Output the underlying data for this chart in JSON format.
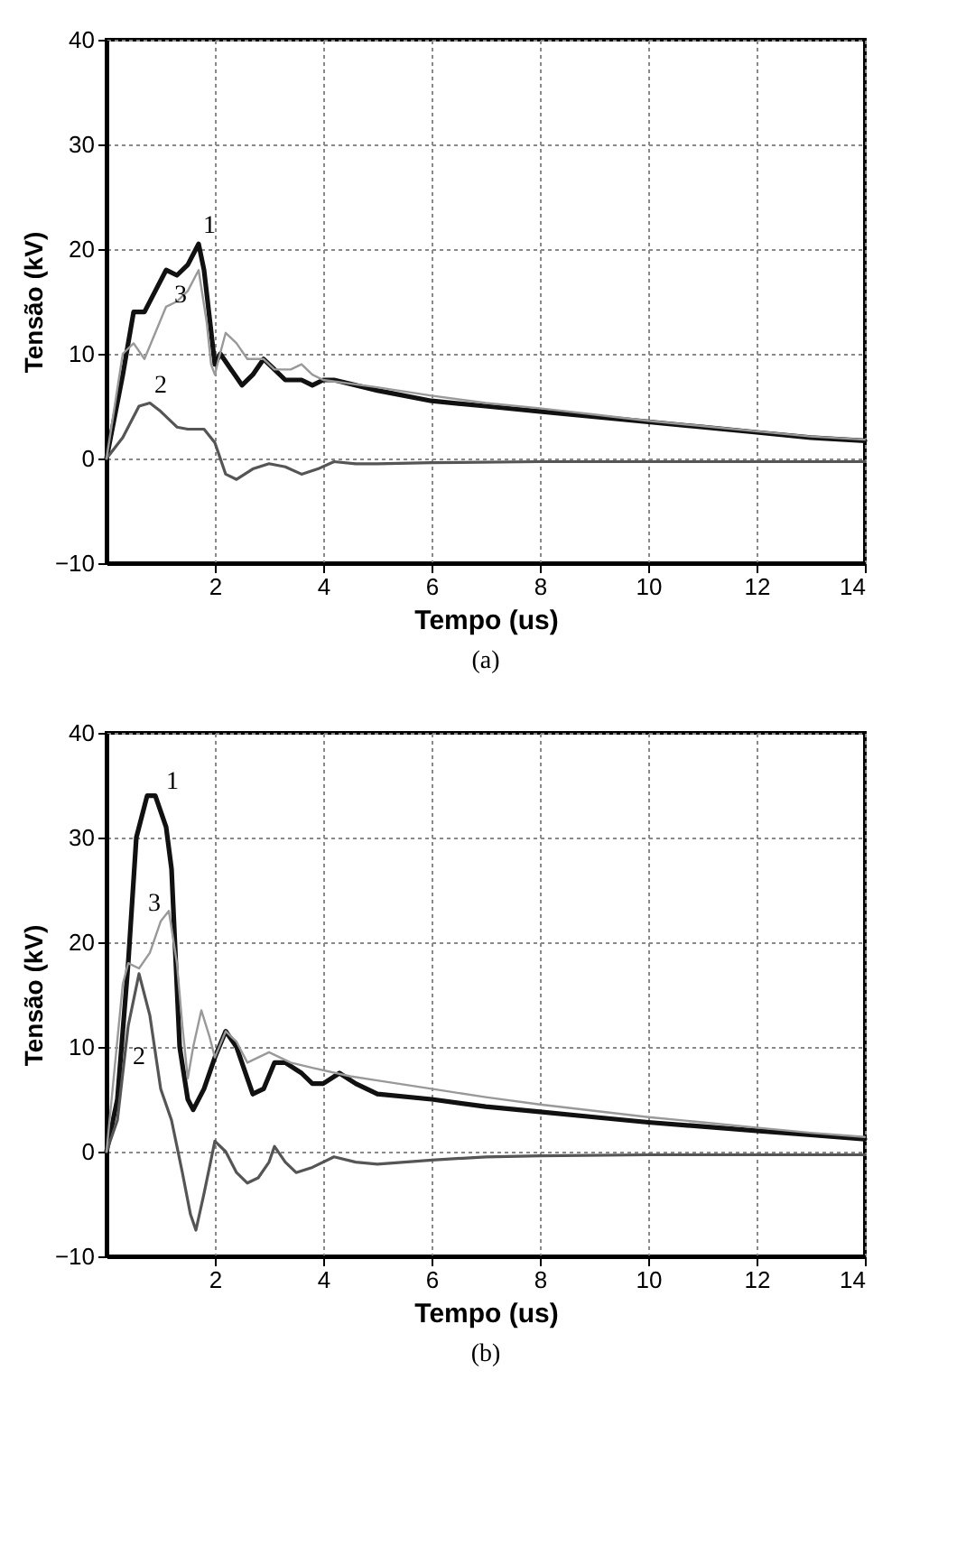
{
  "chart_data": [
    {
      "type": "line",
      "xlabel": "Tempo (us)",
      "ylabel": "Tensão (kV)",
      "xlim": [
        0,
        14
      ],
      "xticks": [
        2,
        4,
        6,
        8,
        10,
        12,
        14
      ],
      "ylim": [
        -10,
        40
      ],
      "yticks": [
        -10,
        0,
        10,
        20,
        30,
        40
      ],
      "grid": true,
      "annotations": [
        "(a)"
      ],
      "series": [
        {
          "name": "1",
          "color": "#111111",
          "x": [
            0,
            0.3,
            0.5,
            0.7,
            0.9,
            1.1,
            1.3,
            1.5,
            1.7,
            1.8,
            2.0,
            2.1,
            2.3,
            2.5,
            2.7,
            2.9,
            3.1,
            3.3,
            3.6,
            3.8,
            4,
            4.2,
            5,
            6,
            7,
            8,
            9,
            10,
            11,
            12,
            13,
            14
          ],
          "values": [
            0,
            8,
            14,
            14,
            16,
            18,
            17.5,
            18.5,
            20.5,
            18,
            9,
            10,
            8.5,
            7,
            8,
            9.5,
            8.5,
            7.5,
            7.5,
            7,
            7.5,
            7.5,
            6.5,
            5.5,
            5,
            4.5,
            4,
            3.5,
            3,
            2.5,
            2,
            1.7
          ]
        },
        {
          "name": "2",
          "color": "#555555",
          "x": [
            0,
            0.3,
            0.6,
            0.8,
            1.0,
            1.3,
            1.5,
            1.8,
            2.0,
            2.2,
            2.4,
            2.7,
            3.0,
            3.3,
            3.6,
            3.9,
            4.2,
            4.6,
            5,
            6,
            8,
            10,
            14
          ],
          "values": [
            0,
            2,
            5,
            5.3,
            4.5,
            3,
            2.8,
            2.8,
            1.5,
            -1.5,
            -2,
            -1,
            -0.5,
            -0.8,
            -1.5,
            -1,
            -0.3,
            -0.5,
            -0.5,
            -0.4,
            -0.3,
            -0.3,
            -0.3
          ]
        },
        {
          "name": "3",
          "color": "#999999",
          "x": [
            0,
            0.3,
            0.5,
            0.7,
            0.9,
            1.1,
            1.3,
            1.5,
            1.7,
            1.85,
            1.93,
            2.0,
            2.07,
            2.2,
            2.4,
            2.6,
            2.9,
            3.1,
            3.4,
            3.6,
            3.8,
            4,
            5,
            6,
            7,
            8,
            9,
            10,
            11,
            12,
            13,
            14
          ],
          "values": [
            0,
            10,
            11,
            9.5,
            12,
            14.5,
            15,
            16,
            18,
            13,
            9,
            8,
            9.5,
            12,
            11,
            9.5,
            9.5,
            8.5,
            8.5,
            9,
            8,
            7.5,
            6.8,
            6,
            5.3,
            4.8,
            4.2,
            3.6,
            3.1,
            2.6,
            2.1,
            1.8
          ]
        }
      ]
    },
    {
      "type": "line",
      "xlabel": "Tempo (us)",
      "ylabel": "Tensão (kV)",
      "xlim": [
        0,
        14
      ],
      "xticks": [
        2,
        4,
        6,
        8,
        10,
        12,
        14
      ],
      "ylim": [
        -10,
        40
      ],
      "yticks": [
        -10,
        0,
        10,
        20,
        30,
        40
      ],
      "grid": true,
      "annotations": [
        "(b)"
      ],
      "series": [
        {
          "name": "1",
          "color": "#111111",
          "x": [
            0,
            0.2,
            0.4,
            0.55,
            0.75,
            0.9,
            1.1,
            1.2,
            1.35,
            1.5,
            1.6,
            1.8,
            2.0,
            2.2,
            2.4,
            2.6,
            2.7,
            2.9,
            3.1,
            3.3,
            3.6,
            3.8,
            4.0,
            4.3,
            4.6,
            5,
            6,
            7,
            8,
            9,
            10,
            11,
            12,
            13,
            14
          ],
          "values": [
            0,
            5,
            18,
            30,
            34,
            34,
            31,
            27,
            10,
            5,
            4,
            6,
            9,
            11.5,
            10,
            7,
            5.5,
            6,
            8.5,
            8.5,
            7.5,
            6.5,
            6.5,
            7.5,
            6.5,
            5.5,
            5,
            4.3,
            3.8,
            3.3,
            2.8,
            2.4,
            2,
            1.6,
            1.2
          ]
        },
        {
          "name": "2",
          "color": "#555555",
          "x": [
            0,
            0.2,
            0.4,
            0.6,
            0.8,
            1.0,
            1.2,
            1.4,
            1.55,
            1.65,
            1.8,
            2.0,
            2.2,
            2.4,
            2.6,
            2.8,
            3.0,
            3.1,
            3.3,
            3.5,
            3.8,
            4.2,
            4.6,
            5,
            6,
            7,
            8,
            10,
            14
          ],
          "values": [
            0,
            3,
            12,
            17,
            13,
            6,
            3,
            -2,
            -6,
            -7.5,
            -4,
            1,
            0,
            -2,
            -3,
            -2.5,
            -1,
            0.5,
            -1,
            -2,
            -1.5,
            -0.5,
            -1,
            -1.2,
            -0.8,
            -0.5,
            -0.4,
            -0.3,
            -0.3
          ]
        },
        {
          "name": "3",
          "color": "#999999",
          "x": [
            0,
            0.3,
            0.4,
            0.6,
            0.8,
            1.0,
            1.15,
            1.3,
            1.4,
            1.5,
            1.6,
            1.75,
            1.9,
            2.0,
            2.2,
            2.4,
            2.6,
            2.8,
            3.0,
            3.4,
            3.8,
            4.5,
            5,
            6,
            7,
            8,
            9,
            10,
            11,
            12,
            13,
            14
          ],
          "values": [
            0,
            16,
            18,
            17.5,
            19,
            22,
            23,
            18,
            12,
            7,
            10,
            13.5,
            11,
            9,
            11.5,
            10.5,
            8.5,
            9,
            9.5,
            8.5,
            8,
            7.2,
            6.8,
            6,
            5.2,
            4.5,
            3.9,
            3.3,
            2.8,
            2.3,
            1.8,
            1.4
          ]
        }
      ]
    }
  ]
}
